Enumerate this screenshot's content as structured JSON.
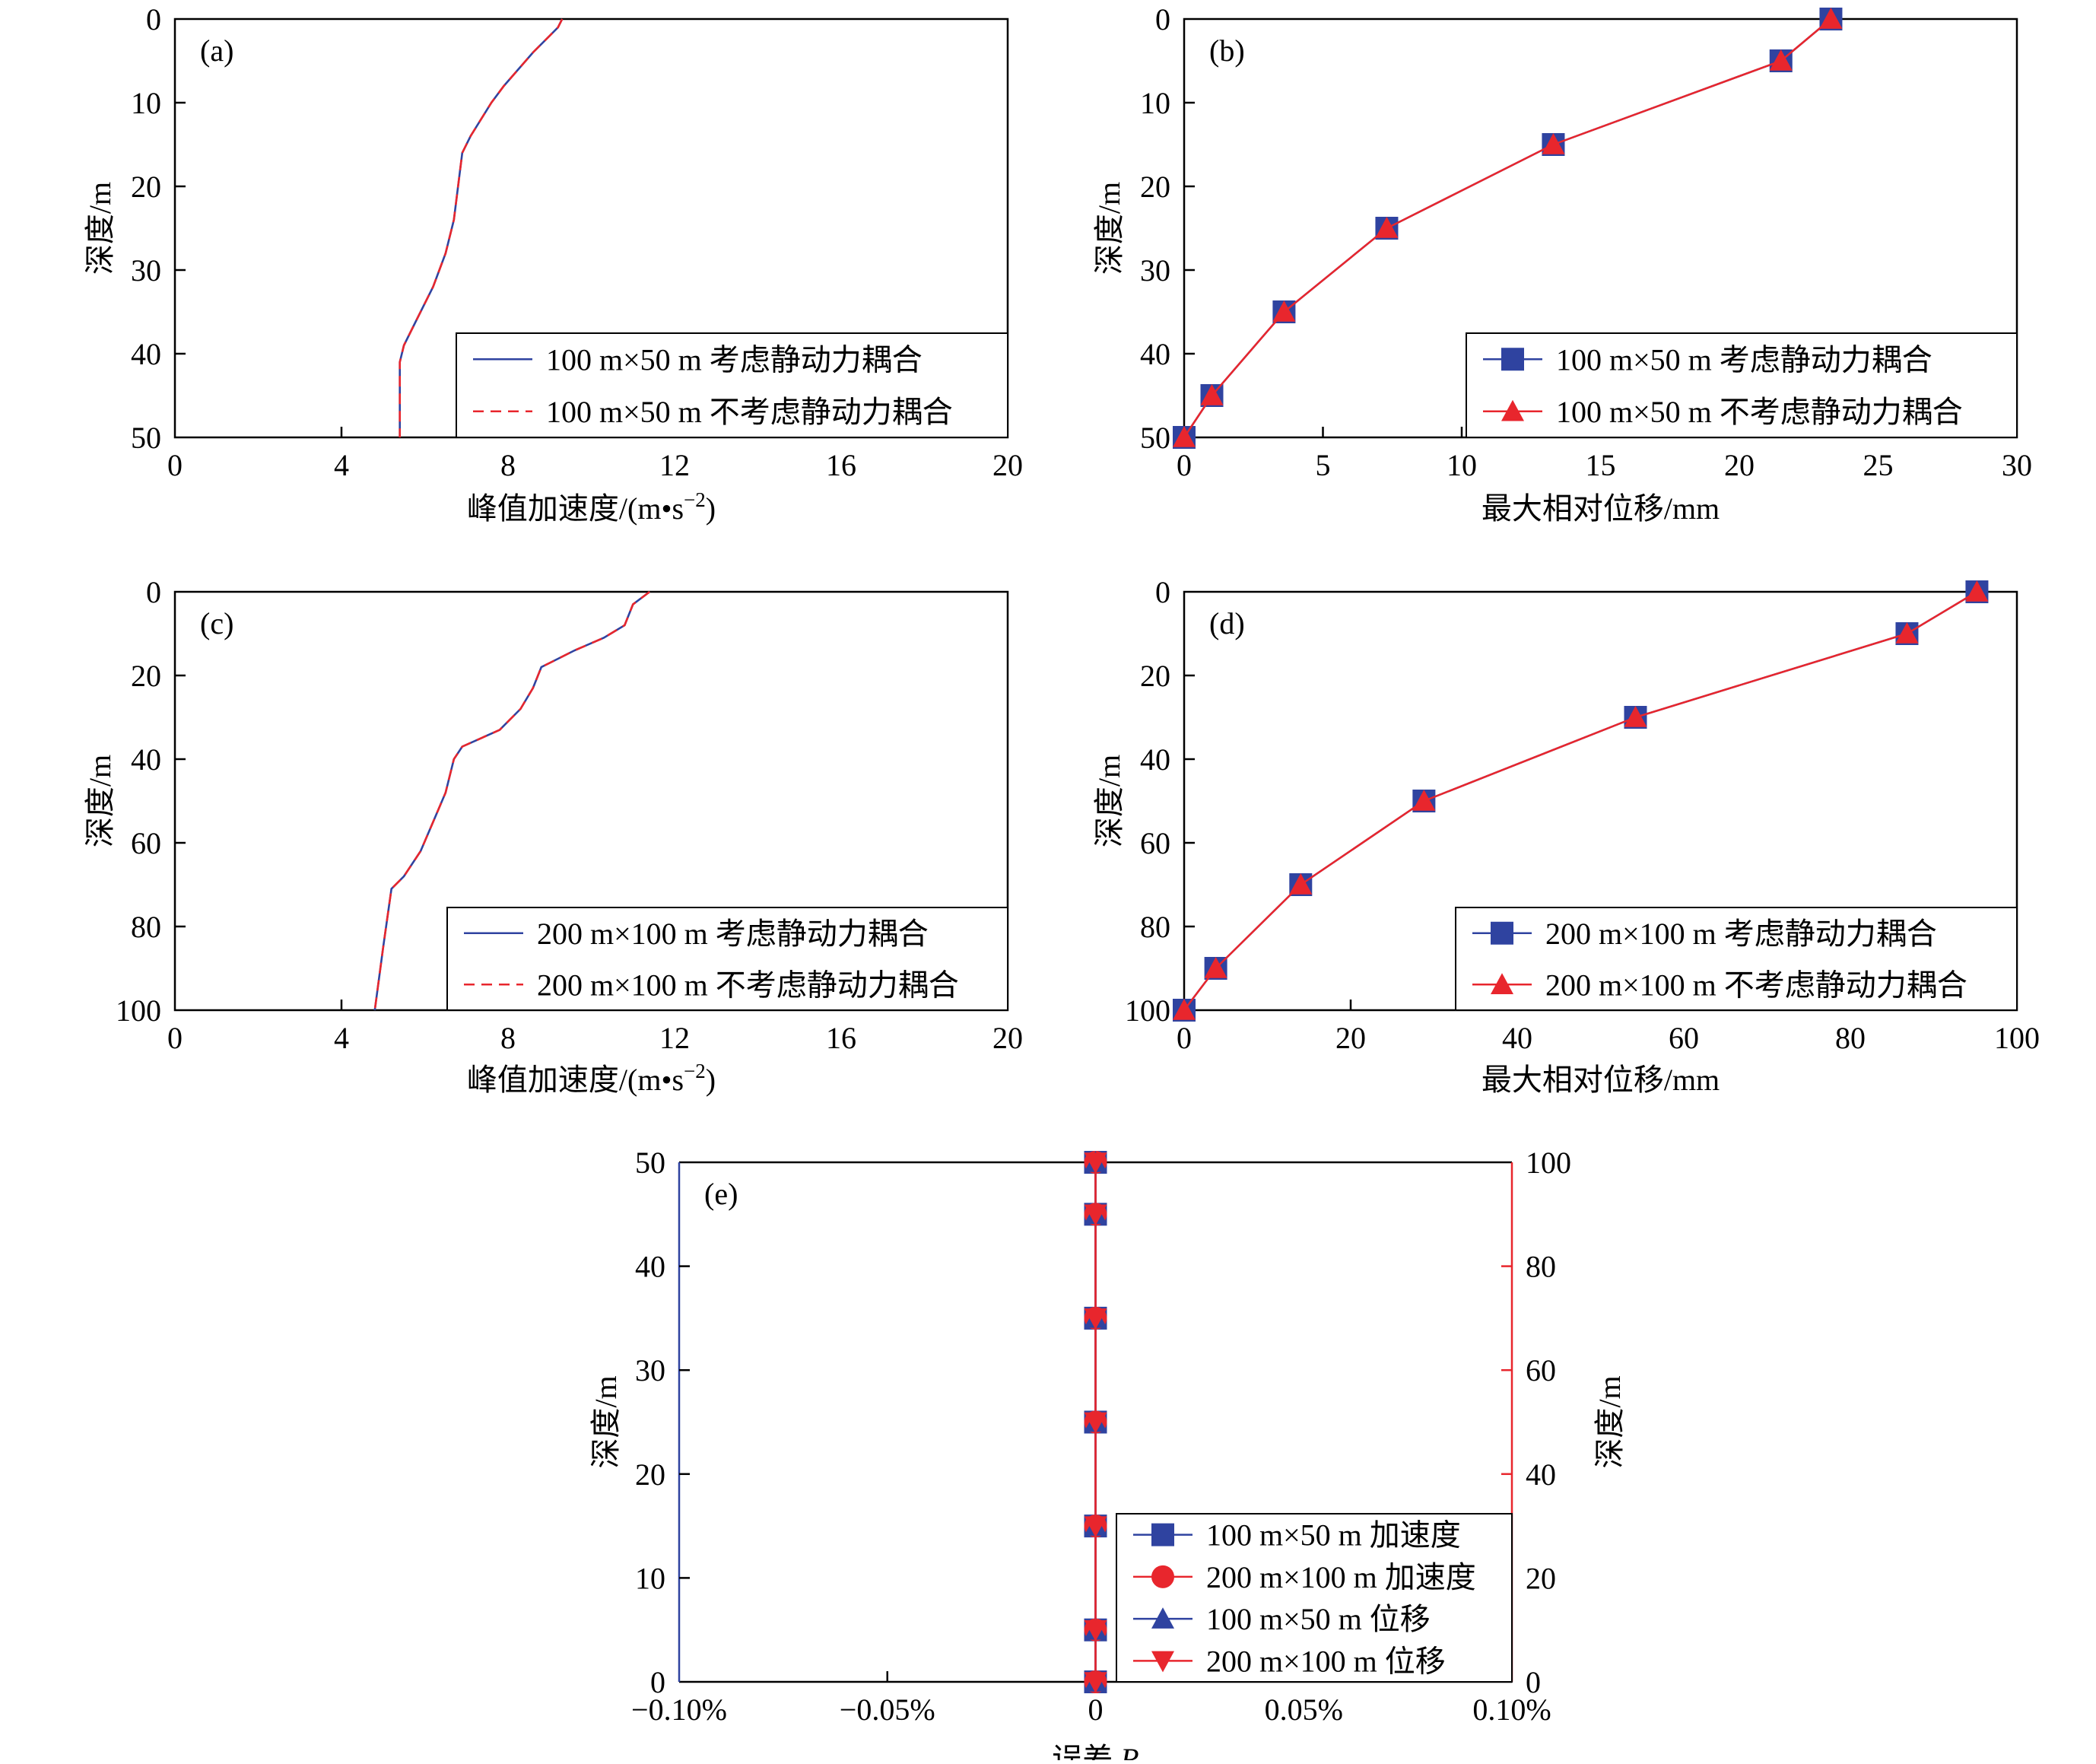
{
  "colors": {
    "blue": "#2f43a0",
    "red": "#e8262d",
    "axis": "#000000"
  },
  "chart_data": [
    {
      "panel": "(a)",
      "type": "line",
      "xlabel": "峰值加速度/(m•s",
      "xlabel_sup": "−2",
      "xlabel_tail": ")",
      "ylabel": "深度/m",
      "xlim": [
        0,
        20
      ],
      "ylim": [
        0,
        50
      ],
      "y_inverted": true,
      "xticks": [
        0,
        4,
        8,
        12,
        16,
        20
      ],
      "yticks": [
        0,
        10,
        20,
        30,
        40,
        50
      ],
      "legend_position": "bottom-right",
      "series": [
        {
          "name": "100 m×50 m 考虑静动力耦合",
          "color": "blue",
          "style": "solid",
          "x": [
            9.3,
            9.2,
            9.0,
            8.6,
            7.9,
            7.6,
            7.1,
            6.9,
            6.8,
            6.7,
            6.5,
            6.2,
            5.8,
            5.5,
            5.4,
            5.4
          ],
          "y": [
            0,
            1,
            2,
            4,
            8,
            10,
            14,
            16,
            20,
            24,
            28,
            32,
            36,
            39,
            41,
            50
          ]
        },
        {
          "name": "100 m×50 m 不考虑静动力耦合",
          "color": "red",
          "style": "dashed",
          "x": [
            9.3,
            9.2,
            9.0,
            8.6,
            7.9,
            7.6,
            7.1,
            6.9,
            6.8,
            6.7,
            6.5,
            6.2,
            5.8,
            5.5,
            5.4,
            5.4
          ],
          "y": [
            0,
            1,
            2,
            4,
            8,
            10,
            14,
            16,
            20,
            24,
            28,
            32,
            36,
            39,
            41,
            50
          ]
        }
      ]
    },
    {
      "panel": "(b)",
      "type": "line",
      "xlabel": "最大相对位移/mm",
      "ylabel": "深度/m",
      "xlim": [
        0,
        30
      ],
      "ylim": [
        0,
        50
      ],
      "y_inverted": true,
      "xticks": [
        0,
        5,
        10,
        15,
        20,
        25,
        30
      ],
      "yticks": [
        0,
        10,
        20,
        30,
        40,
        50
      ],
      "legend_position": "bottom-right",
      "series": [
        {
          "name": "100 m×50 m 考虑静动力耦合",
          "color": "blue",
          "marker": "square",
          "x": [
            23.3,
            21.5,
            13.3,
            7.3,
            3.6,
            1.0,
            0.0
          ],
          "y": [
            0,
            5,
            15,
            25,
            35,
            45,
            50
          ]
        },
        {
          "name": "100 m×50 m 不考虑静动力耦合",
          "color": "red",
          "marker": "triangle-up",
          "x": [
            23.3,
            21.5,
            13.3,
            7.3,
            3.6,
            1.0,
            0.0
          ],
          "y": [
            0,
            5,
            15,
            25,
            35,
            45,
            50
          ]
        }
      ]
    },
    {
      "panel": "(c)",
      "type": "line",
      "xlabel": "峰值加速度/(m•s",
      "xlabel_sup": "−2",
      "xlabel_tail": ")",
      "ylabel": "深度/m",
      "xlim": [
        0,
        20
      ],
      "ylim": [
        0,
        100
      ],
      "y_inverted": true,
      "xticks": [
        0,
        4,
        8,
        12,
        16,
        20
      ],
      "yticks": [
        0,
        20,
        40,
        60,
        80,
        100
      ],
      "legend_position": "bottom-right",
      "series": [
        {
          "name": "200 m×100 m 考虑静动力耦合",
          "color": "blue",
          "style": "solid",
          "x": [
            11.4,
            11.0,
            10.8,
            10.3,
            9.6,
            9.0,
            8.8,
            8.6,
            8.3,
            7.8,
            6.9,
            6.7,
            6.5,
            6.2,
            5.9,
            5.5,
            5.2,
            5.0,
            4.8
          ],
          "y": [
            0,
            3,
            8,
            11,
            14,
            17,
            18,
            23,
            28,
            33,
            37,
            40,
            48,
            55,
            62,
            68,
            71,
            85,
            100
          ]
        },
        {
          "name": "200 m×100 m 不考虑静动力耦合",
          "color": "red",
          "style": "dashed",
          "x": [
            11.4,
            11.0,
            10.8,
            10.3,
            9.6,
            9.0,
            8.8,
            8.6,
            8.3,
            7.8,
            6.9,
            6.7,
            6.5,
            6.2,
            5.9,
            5.5,
            5.2,
            5.0,
            4.8
          ],
          "y": [
            0,
            3,
            8,
            11,
            14,
            17,
            18,
            23,
            28,
            33,
            37,
            40,
            48,
            55,
            62,
            68,
            71,
            85,
            100
          ]
        }
      ]
    },
    {
      "panel": "(d)",
      "type": "line",
      "xlabel": "最大相对位移/mm",
      "ylabel": "深度/m",
      "xlim": [
        0,
        100
      ],
      "ylim": [
        0,
        100
      ],
      "y_inverted": true,
      "xticks": [
        0,
        20,
        40,
        60,
        80,
        100
      ],
      "yticks": [
        0,
        20,
        40,
        60,
        80,
        100
      ],
      "legend_position": "bottom-right",
      "series": [
        {
          "name": "200 m×100 m 考虑静动力耦合",
          "color": "blue",
          "marker": "square",
          "x": [
            95.2,
            86.8,
            54.2,
            28.8,
            14.0,
            3.8,
            0.0
          ],
          "y": [
            0,
            10,
            30,
            50,
            70,
            90,
            100
          ]
        },
        {
          "name": "200 m×100 m 不考虑静动力耦合",
          "color": "red",
          "marker": "triangle-up",
          "x": [
            95.2,
            86.8,
            54.2,
            28.8,
            14.0,
            3.8,
            0.0
          ],
          "y": [
            0,
            10,
            30,
            50,
            70,
            90,
            100
          ]
        }
      ]
    },
    {
      "panel": "(e)",
      "type": "line",
      "xlabel": "误差 ",
      "xlabel_italic": "R",
      "ylabel": "深度/m",
      "y2label": "深度/m",
      "xlim": [
        -0.1,
        0.1
      ],
      "ylim": [
        0,
        50
      ],
      "y2lim": [
        0,
        100
      ],
      "xticks": [
        -0.1,
        -0.05,
        0,
        0.05,
        0.1
      ],
      "xticklabels": [
        "−0.10%",
        "−0.05%",
        "0",
        "0.05%",
        "0.10%"
      ],
      "yticks": [
        0,
        10,
        20,
        30,
        40,
        50
      ],
      "y2ticks": [
        0,
        20,
        40,
        60,
        80,
        100
      ],
      "legend_position": "bottom-right",
      "series": [
        {
          "name": "100 m×50 m 加速度",
          "color": "blue",
          "marker": "square",
          "axis": "left",
          "x": [
            0,
            0,
            0,
            0,
            0,
            0,
            0
          ],
          "y": [
            0,
            5,
            15,
            25,
            35,
            45,
            50
          ]
        },
        {
          "name": "200 m×100 m 加速度",
          "color": "red",
          "marker": "circle",
          "axis": "right",
          "x": [
            0,
            0,
            0,
            0,
            0,
            0,
            0
          ],
          "y": [
            0,
            10,
            30,
            50,
            70,
            90,
            100
          ]
        },
        {
          "name": "100 m×50 m 位移",
          "color": "blue",
          "marker": "triangle-up",
          "axis": "left",
          "x": [
            0,
            0,
            0,
            0,
            0,
            0,
            0
          ],
          "y": [
            0,
            5,
            15,
            25,
            35,
            45,
            50
          ]
        },
        {
          "name": "200 m×100 m 位移",
          "color": "red",
          "marker": "triangle-down",
          "axis": "right",
          "x": [
            0,
            0,
            0,
            0,
            0,
            0,
            0
          ],
          "y": [
            0,
            10,
            30,
            50,
            70,
            90,
            100
          ]
        }
      ]
    }
  ]
}
